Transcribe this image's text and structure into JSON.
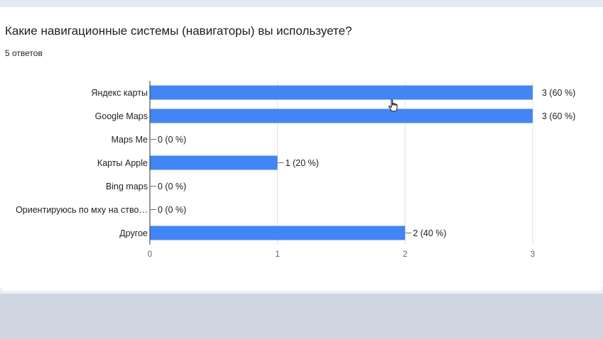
{
  "question": {
    "title": "Какие навигационные системы (навигаторы) вы используете?",
    "responses": "5 ответов"
  },
  "colors": {
    "bar": "#4285f4",
    "grid": "#e0e0e0",
    "axis": "#333333"
  },
  "chart_data": {
    "type": "bar",
    "orientation": "horizontal",
    "categories": [
      "Яндекс карты",
      "Google Maps",
      "Maps Me",
      "Карты Apple",
      "Bing maps",
      "Ориентируюсь по мху на ство…",
      "Другое"
    ],
    "values": [
      3,
      3,
      0,
      1,
      0,
      0,
      2
    ],
    "data_labels": [
      "3 (60 %)",
      "3 (60 %)",
      "0 (0 %)",
      "1 (20 %)",
      "0 (0 %)",
      "0 (0 %)",
      "2 (40 %)"
    ],
    "xlim": [
      0,
      3
    ],
    "xticks": [
      0,
      1,
      2,
      3
    ],
    "grid": true,
    "legend": "none"
  }
}
